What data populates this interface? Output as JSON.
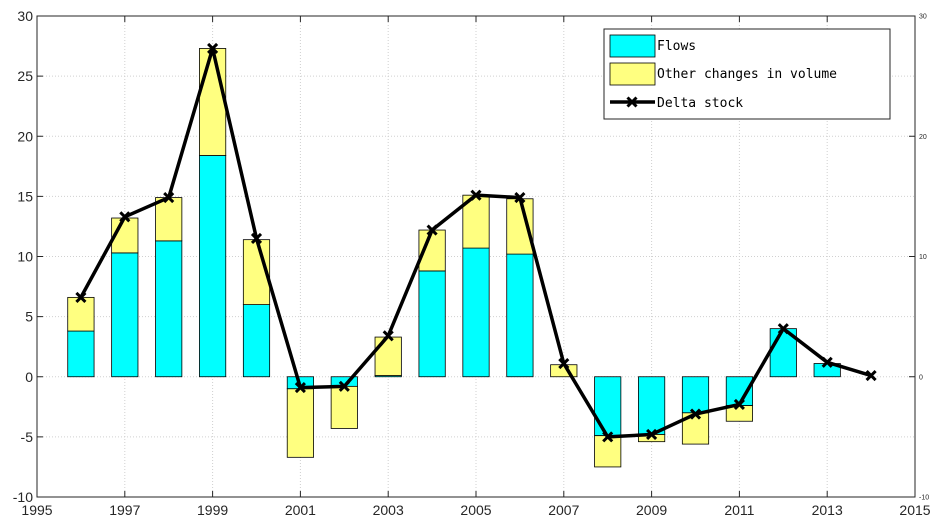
{
  "chart_data": {
    "type": "bar",
    "x": [
      1996,
      1997,
      1998,
      1999,
      2000,
      2001,
      2002,
      2003,
      2004,
      2005,
      2006,
      2007,
      2008,
      2009,
      2010,
      2011,
      2012,
      2013,
      2014
    ],
    "series": [
      {
        "name": "Flows",
        "kind": "stacked-bar",
        "color": "#00ffff",
        "values": [
          3.8,
          10.3,
          11.3,
          18.4,
          6.0,
          -1.0,
          -0.8,
          0.1,
          8.8,
          10.7,
          10.2,
          0.0,
          -4.9,
          -4.8,
          -3.0,
          -2.4,
          4.0,
          1.1,
          0.0
        ]
      },
      {
        "name": "Other changes in volume",
        "kind": "stacked-bar",
        "color": "#ffff80",
        "values": [
          2.8,
          2.9,
          3.6,
          8.9,
          5.4,
          -5.7,
          -3.5,
          3.2,
          3.4,
          4.4,
          4.6,
          1.0,
          -2.6,
          -0.6,
          -2.6,
          -1.3,
          0.0,
          0.0,
          0.0
        ]
      },
      {
        "name": "Delta stock",
        "kind": "line",
        "color": "#000000",
        "marker": "x",
        "values": [
          6.6,
          13.3,
          14.9,
          27.3,
          11.5,
          -0.9,
          -0.8,
          3.4,
          12.2,
          15.1,
          14.9,
          1.1,
          -5.0,
          -4.8,
          -3.1,
          -2.3,
          4.0,
          1.2,
          0.1
        ]
      }
    ],
    "xlim": [
      1995,
      2015
    ],
    "ylim": [
      -10,
      30
    ],
    "x_ticks": [
      "1995",
      "1997",
      "1999",
      "2001",
      "2003",
      "2005",
      "2007",
      "2009",
      "2011",
      "2013",
      "2015"
    ],
    "y_ticks": [
      "-10",
      "-5",
      "0",
      "5",
      "10",
      "15",
      "20",
      "25",
      "30"
    ],
    "y2_ticks": [
      "-10",
      "0",
      "10",
      "20",
      "30"
    ],
    "grid": true,
    "legend_position": "top-right",
    "title": "",
    "xlabel": "",
    "ylabel": ""
  }
}
